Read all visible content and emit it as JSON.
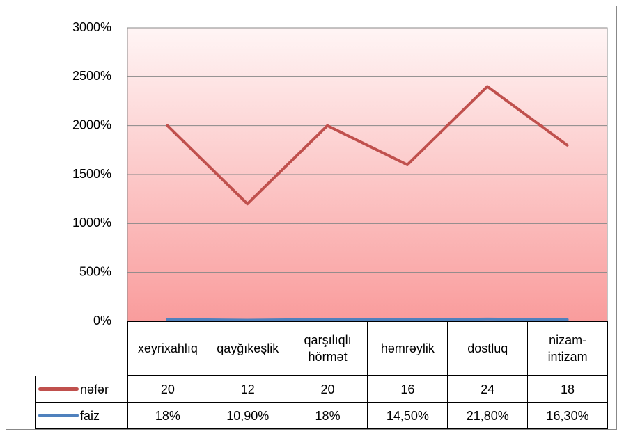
{
  "chart_data": {
    "type": "line",
    "categories": [
      "xeyrixahlıq",
      "qayğıkeşlik",
      "qarşılıqlı hörmət",
      "həmrəylik",
      "dostluq",
      "nizam-intizam"
    ],
    "series": [
      {
        "name": "nəfər",
        "color": "#c0504d",
        "values": [
          20,
          12,
          20,
          16,
          24,
          18
        ]
      },
      {
        "name": "faiz",
        "color": "#4f81bd",
        "values": [
          0.18,
          0.109,
          0.18,
          0.145,
          0.218,
          0.163
        ],
        "value_labels": [
          "18%",
          "10,90%",
          "18%",
          "14,50%",
          "21,80%",
          "16,30%"
        ]
      }
    ],
    "ylim": [
      0,
      30
    ],
    "yticks": [
      {
        "value": 0,
        "label": "0%"
      },
      {
        "value": 5,
        "label": "500%"
      },
      {
        "value": 10,
        "label": "1000%"
      },
      {
        "value": 15,
        "label": "1500%"
      },
      {
        "value": 20,
        "label": "2000%"
      },
      {
        "value": 25,
        "label": "2500%"
      },
      {
        "value": 30,
        "label": "3000%"
      }
    ],
    "grid": true
  }
}
